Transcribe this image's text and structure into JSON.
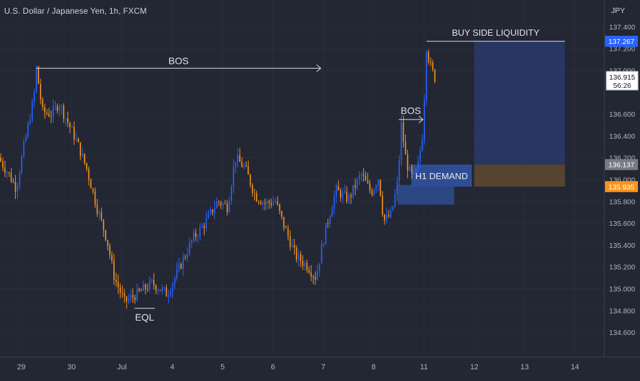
{
  "header": {
    "title": "U.S. Dollar / Japanese Yen, 1h, FXCM"
  },
  "price_axis": {
    "currency": "JPY",
    "current_price_label": "136.915",
    "countdown_label": "56:26",
    "tags": [
      {
        "label": "137.267",
        "value": 137.267,
        "color": "#2962ff"
      },
      {
        "label": "136.137",
        "value": 136.137,
        "color": "#787b86"
      },
      {
        "label": "135.935",
        "value": 135.935,
        "color": "#f7931a"
      }
    ]
  },
  "chart_data": {
    "type": "candlestick",
    "symbol": "U.S. Dollar / Japanese Yen",
    "interval": "1h",
    "source": "FXCM",
    "colors": {
      "up": "#2962ff",
      "down": "#f7931a",
      "background": "#232734",
      "grid": "#2b3040",
      "text": "#d1d4dc"
    },
    "x_ticks": [
      "29",
      "30",
      "Jul",
      "4",
      "5",
      "6",
      "7",
      "8",
      "11",
      "12",
      "13",
      "14"
    ],
    "x_tick_days": [
      0,
      1,
      2,
      3,
      4,
      5,
      6,
      7,
      8,
      9,
      10,
      11
    ],
    "ylim": [
      134.5,
      137.45
    ],
    "y_ticks": [
      134.6,
      134.8,
      135.0,
      135.2,
      135.4,
      135.6,
      135.8,
      136.0,
      136.2,
      136.4,
      136.6,
      137.0,
      137.2,
      137.4
    ],
    "y_tick_labels": [
      "134.600",
      "134.800",
      "135.000",
      "135.200",
      "135.400",
      "135.600",
      "135.800",
      "136.000",
      "136.200",
      "136.400",
      "136.600",
      "137.000",
      "137.200",
      "137.400"
    ],
    "price_path": [
      [
        -0.45,
        136.2
      ],
      [
        -0.25,
        136.05
      ],
      [
        -0.1,
        135.92
      ],
      [
        0.05,
        136.3
      ],
      [
        0.25,
        136.75
      ],
      [
        0.3,
        137.02
      ],
      [
        0.42,
        136.62
      ],
      [
        0.6,
        136.6
      ],
      [
        0.75,
        136.7
      ],
      [
        0.9,
        136.55
      ],
      [
        1.1,
        136.35
      ],
      [
        1.3,
        136.1
      ],
      [
        1.5,
        135.75
      ],
      [
        1.7,
        135.45
      ],
      [
        1.85,
        135.1
      ],
      [
        2.05,
        134.88
      ],
      [
        2.3,
        134.95
      ],
      [
        2.6,
        135.05
      ],
      [
        2.9,
        134.95
      ],
      [
        3.15,
        135.2
      ],
      [
        3.4,
        135.45
      ],
      [
        3.65,
        135.6
      ],
      [
        3.9,
        135.8
      ],
      [
        4.1,
        135.75
      ],
      [
        4.25,
        136.2
      ],
      [
        4.45,
        136.1
      ],
      [
        4.65,
        135.85
      ],
      [
        4.85,
        135.78
      ],
      [
        5.05,
        135.8
      ],
      [
        5.2,
        135.6
      ],
      [
        5.45,
        135.3
      ],
      [
        5.7,
        135.2
      ],
      [
        5.85,
        135.1
      ],
      [
        6.05,
        135.55
      ],
      [
        6.25,
        135.9
      ],
      [
        6.5,
        135.82
      ],
      [
        6.75,
        136.05
      ],
      [
        6.95,
        135.88
      ],
      [
        7.1,
        136.02
      ],
      [
        7.2,
        135.62
      ],
      [
        7.35,
        135.68
      ],
      [
        7.48,
        135.98
      ],
      [
        7.55,
        136.5
      ],
      [
        7.65,
        136.15
      ],
      [
        7.78,
        136.0
      ],
      [
        7.88,
        136.12
      ],
      [
        7.98,
        136.45
      ],
      [
        8.05,
        137.22
      ],
      [
        8.12,
        137.05
      ],
      [
        8.2,
        136.95
      ],
      [
        8.25,
        136.9
      ]
    ],
    "eql": {
      "label": "EQL",
      "price": 134.82,
      "day_start": 2.25,
      "day_end": 2.65
    },
    "bos_major": {
      "label": "BOS",
      "price": 137.02,
      "day_start": 0.3,
      "day_end": 5.95
    },
    "bos_minor": {
      "label": "BOS",
      "price": 136.55,
      "day_start": 7.5,
      "day_end": 7.98
    },
    "buy_side_liquidity": {
      "label": "BUY SIDE LIQUIDITY",
      "price": 137.267,
      "day_start": 8.05,
      "day_end": 10.8
    },
    "liquidity_zone": {
      "price_top": 137.267,
      "price_bottom": 136.137,
      "day_start": 9.0,
      "day_end": 10.8
    },
    "demand_zone": {
      "price_top": 136.137,
      "price_bottom": 135.935,
      "day_start": 9.0,
      "day_end": 10.8
    },
    "h1_demand_box": {
      "label": "H1 DEMAND",
      "price_top": 136.137,
      "price_bottom": 135.935,
      "day_start": 7.75,
      "day_end": 8.95
    },
    "lower_demand_box": {
      "price_top": 135.95,
      "price_bottom": 135.77,
      "day_start": 7.48,
      "day_end": 8.6
    }
  }
}
